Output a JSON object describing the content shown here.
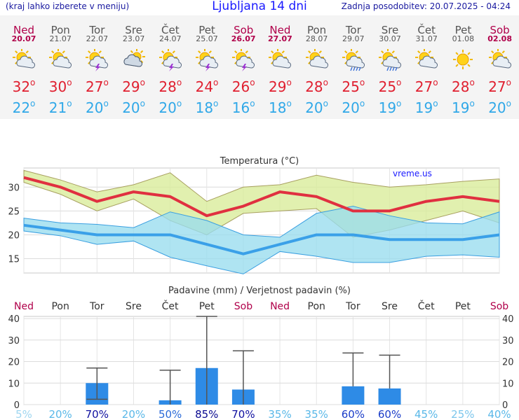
{
  "header": {
    "menu_hint": "(kraj lahko izberete v meniju)",
    "title": "Ljubljana 14 dni",
    "last_update": "Zadnja posodobitev: 20.07.2025 - 04:24"
  },
  "days": [
    {
      "name": "Ned",
      "date": "20.07",
      "weekend": true,
      "icon": "sun-cloud-icon",
      "max": "32",
      "min": "22"
    },
    {
      "name": "Pon",
      "date": "21.07",
      "weekend": false,
      "icon": "sun-cloud-icon",
      "max": "30",
      "min": "21"
    },
    {
      "name": "Tor",
      "date": "22.07",
      "weekend": false,
      "icon": "sun-cloud-storm-icon",
      "max": "27",
      "min": "20"
    },
    {
      "name": "Sre",
      "date": "23.07",
      "weekend": false,
      "icon": "sun-cloud-icon-heavy",
      "max": "29",
      "min": "20"
    },
    {
      "name": "Čet",
      "date": "24.07",
      "weekend": false,
      "icon": "sun-cloud-storm-icon",
      "max": "28",
      "min": "20"
    },
    {
      "name": "Pet",
      "date": "25.07",
      "weekend": false,
      "icon": "sun-cloud-storm-icon",
      "max": "24",
      "min": "18"
    },
    {
      "name": "Sob",
      "date": "26.07",
      "weekend": true,
      "icon": "sun-cloud-storm-icon",
      "max": "26",
      "min": "16"
    },
    {
      "name": "Ned",
      "date": "27.07",
      "weekend": true,
      "icon": "sun-cloud-icon",
      "max": "29",
      "min": "18"
    },
    {
      "name": "Pon",
      "date": "28.07",
      "weekend": false,
      "icon": "sun-cloud-icon",
      "max": "28",
      "min": "20"
    },
    {
      "name": "Tor",
      "date": "29.07",
      "weekend": false,
      "icon": "sun-cloud-rain-icon",
      "max": "25",
      "min": "20"
    },
    {
      "name": "Sre",
      "date": "30.07",
      "weekend": false,
      "icon": "sun-cloud-rain-icon",
      "max": "25",
      "min": "19"
    },
    {
      "name": "Čet",
      "date": "31.07",
      "weekend": false,
      "icon": "sun-cloud-icon",
      "max": "27",
      "min": "19"
    },
    {
      "name": "Pet",
      "date": "01.08",
      "weekend": false,
      "icon": "sun-icon",
      "max": "28",
      "min": "19"
    },
    {
      "name": "Sob",
      "date": "02.08",
      "weekend": true,
      "icon": "sun-cloud-icon",
      "max": "27",
      "min": "20"
    }
  ],
  "degree_mark": "o",
  "chart_data": [
    {
      "type": "line",
      "title": "Temperatura (°C)",
      "watermark": "vreme.us",
      "x": [
        "20.07",
        "21.07",
        "22.07",
        "23.07",
        "24.07",
        "25.07",
        "26.07",
        "27.07",
        "28.07",
        "29.07",
        "30.07",
        "31.07",
        "01.08",
        "02.08"
      ],
      "yticks": [
        15,
        20,
        25,
        30
      ],
      "ylim": [
        12,
        34
      ],
      "grid": true,
      "series": [
        {
          "role": "max",
          "color": "#e03040",
          "values": [
            32,
            30,
            27,
            29,
            28,
            24,
            26,
            29,
            28,
            25,
            25,
            27,
            28,
            27
          ]
        },
        {
          "role": "min",
          "color": "#3aa0e8",
          "values": [
            22,
            21,
            20,
            20,
            20,
            18,
            16,
            18,
            20,
            20,
            19,
            19,
            19,
            20
          ]
        }
      ],
      "bands": [
        {
          "role": "max-range",
          "color": "#d8ec98",
          "upper": [
            33.5,
            31.5,
            29,
            30.5,
            33,
            27,
            30,
            30.5,
            32.5,
            31,
            30,
            30.5,
            31.2,
            31.7
          ],
          "lower": [
            31,
            28.5,
            25,
            27.5,
            23,
            20,
            24.5,
            25,
            25.5,
            19.5,
            21,
            23,
            25,
            22.5
          ]
        },
        {
          "role": "min-range",
          "color": "#98dcee",
          "upper": [
            23.5,
            22.5,
            22.2,
            21.5,
            24.8,
            23,
            20,
            19.5,
            24.5,
            26,
            24,
            22.5,
            22.3,
            24.8
          ],
          "lower": [
            20.8,
            19.8,
            18,
            18.7,
            15.3,
            13.5,
            11.8,
            16.5,
            15.5,
            14.2,
            14.2,
            15.5,
            15.8,
            15.3
          ]
        }
      ]
    },
    {
      "type": "bar",
      "title": "Padavine (mm) / Verjetnost padavin (%)",
      "categories": [
        "Ned",
        "Pon",
        "Tor",
        "Sre",
        "Čet",
        "Pet",
        "Sob",
        "Ned",
        "Pon",
        "Tor",
        "Sre",
        "Čet",
        "Pet",
        "Sob"
      ],
      "weekend": [
        true,
        false,
        false,
        false,
        false,
        false,
        true,
        true,
        false,
        false,
        false,
        false,
        false,
        true
      ],
      "values": [
        0,
        0,
        10,
        0,
        2,
        17,
        7,
        0,
        0,
        8.5,
        7.5,
        0,
        0,
        0
      ],
      "err_low": [
        null,
        null,
        2.5,
        null,
        0,
        0,
        0,
        null,
        null,
        null,
        null,
        null,
        null,
        null
      ],
      "err_high": [
        null,
        null,
        17,
        null,
        16,
        41,
        25,
        null,
        null,
        24,
        23,
        null,
        null,
        null
      ],
      "probability": [
        "5%",
        "20%",
        "70%",
        "20%",
        "50%",
        "85%",
        "70%",
        "35%",
        "35%",
        "60%",
        "60%",
        "45%",
        "25%",
        "40%"
      ],
      "prob_colors": [
        "#9fd6f0",
        "#5ab8e8",
        "#1010a0",
        "#5ab8e8",
        "#2a6ad8",
        "#0a0a90",
        "#1010a0",
        "#5ab8e8",
        "#5ab8e8",
        "#1a3cc8",
        "#1a3cc8",
        "#5ab8e8",
        "#7cc6ec",
        "#5ab8e8"
      ],
      "yticks": [
        0,
        10,
        20,
        30,
        40
      ],
      "ylim": [
        0,
        41
      ],
      "bar_color": "#2e8be6"
    }
  ]
}
